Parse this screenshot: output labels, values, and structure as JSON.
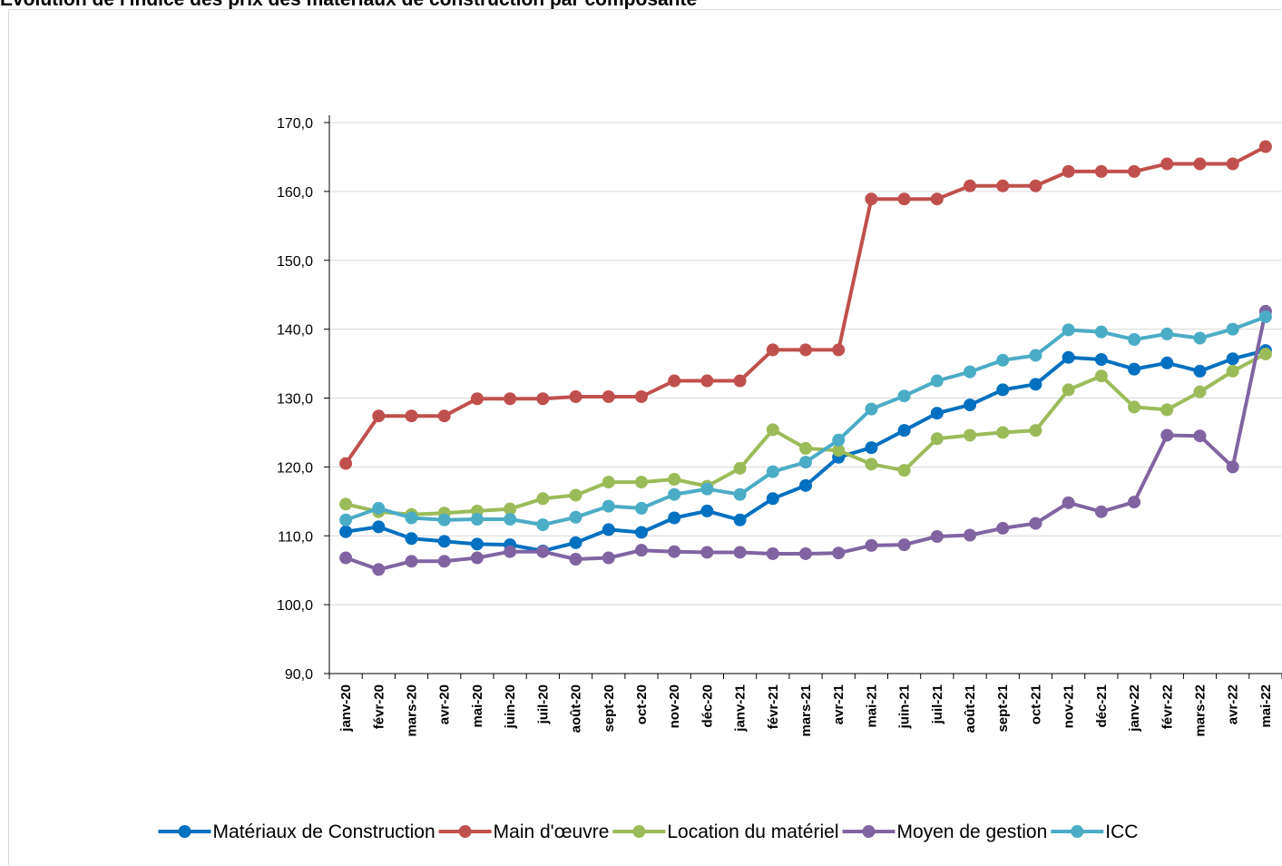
{
  "chart_data": {
    "type": "line",
    "title": "Evolution de l'indice des prix des matériaux de construction par composante",
    "xlabel": "",
    "ylabel": "",
    "ylim": [
      90,
      170
    ],
    "yticks": [
      "90,0",
      "100,0",
      "110,0",
      "120,0",
      "130,0",
      "140,0",
      "150,0",
      "160,0",
      "170,0"
    ],
    "grid": true,
    "legend_position": "bottom",
    "categories": [
      "janv-20",
      "févr-20",
      "mars-20",
      "avr-20",
      "mai-20",
      "juin-20",
      "juil-20",
      "août-20",
      "sept-20",
      "oct-20",
      "nov-20",
      "déc-20",
      "janv-21",
      "févr-21",
      "mars-21",
      "avr-21",
      "mai-21",
      "juin-21",
      "juil-21",
      "août-21",
      "sept-21",
      "oct-21",
      "nov-21",
      "déc-21",
      "janv-22",
      "févr-22",
      "mars-22",
      "avr-22",
      "mai-22"
    ],
    "series": [
      {
        "name": "Matériaux de Construction",
        "color": "#0070c0",
        "values": [
          110.6,
          111.3,
          109.6,
          109.2,
          108.8,
          108.7,
          107.8,
          109.0,
          110.9,
          110.5,
          112.6,
          113.6,
          112.3,
          115.4,
          117.3,
          121.4,
          122.8,
          125.3,
          127.8,
          129.0,
          131.2,
          132.0,
          135.9,
          135.6,
          134.2,
          135.1,
          133.9,
          135.7,
          136.9
        ]
      },
      {
        "name": "Main d'œuvre",
        "color": "#c0504d",
        "values": [
          120.5,
          127.4,
          127.4,
          127.4,
          129.9,
          129.9,
          129.9,
          130.2,
          130.2,
          130.2,
          132.5,
          132.5,
          132.5,
          137.0,
          137.0,
          137.0,
          158.9,
          158.9,
          158.9,
          160.8,
          160.8,
          160.8,
          162.9,
          162.9,
          162.9,
          164.0,
          164.0,
          164.0,
          166.5
        ]
      },
      {
        "name": "Location du matériel",
        "color": "#9bbb59",
        "values": [
          114.6,
          113.5,
          113.1,
          113.3,
          113.6,
          113.9,
          115.4,
          115.9,
          117.8,
          117.8,
          118.2,
          117.2,
          119.8,
          125.4,
          122.7,
          122.4,
          120.4,
          119.5,
          124.1,
          124.6,
          125.0,
          125.3,
          131.2,
          133.2,
          128.7,
          128.3,
          130.9,
          133.9,
          136.4
        ]
      },
      {
        "name": "Moyen de gestion",
        "color": "#8064a2",
        "values": [
          106.8,
          105.1,
          106.3,
          106.3,
          106.8,
          107.7,
          107.7,
          106.6,
          106.8,
          107.9,
          107.7,
          107.6,
          107.6,
          107.4,
          107.4,
          107.5,
          108.6,
          108.7,
          109.9,
          110.1,
          111.1,
          111.8,
          114.8,
          113.5,
          114.9,
          124.6,
          124.5,
          120.0,
          142.6
        ]
      },
      {
        "name": "ICC",
        "color": "#4bacc6",
        "values": [
          112.3,
          114.0,
          112.6,
          112.3,
          112.4,
          112.4,
          111.6,
          112.7,
          114.3,
          114.0,
          116.0,
          116.8,
          116.0,
          119.3,
          120.7,
          123.9,
          128.4,
          130.3,
          132.5,
          133.8,
          135.5,
          136.2,
          139.9,
          139.6,
          138.5,
          139.3,
          138.7,
          140.0,
          141.8
        ]
      }
    ]
  }
}
